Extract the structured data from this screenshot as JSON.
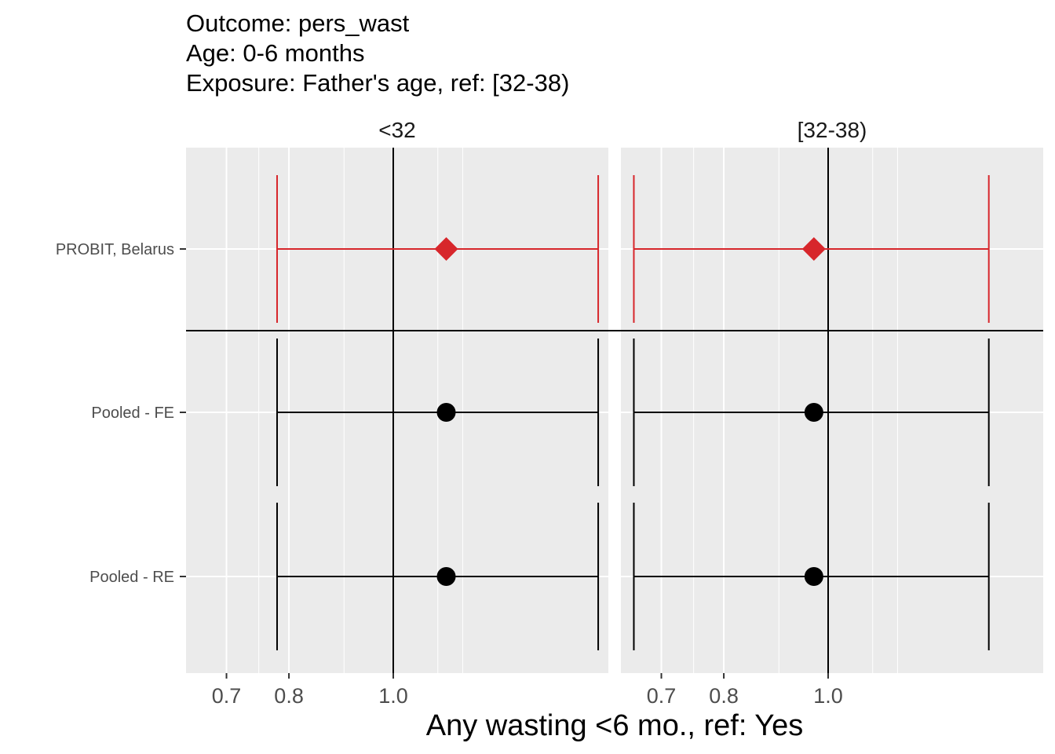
{
  "chart_data": {
    "type": "forest",
    "title": [
      "Outcome: pers_wast",
      "Age: 0-6 months",
      "Exposure: Father's age, ref: [32-38)"
    ],
    "xlabel": "Any wasting  <6 mo., ref: Yes",
    "x_scale": "log",
    "xlim": [
      0.642,
      1.584
    ],
    "x_ticks": [
      {
        "value": 0.7,
        "label": "0.7"
      },
      {
        "value": 0.8,
        "label": "0.8"
      },
      {
        "value": 1.0,
        "label": "1.0"
      }
    ],
    "x_minor_gridlines": [
      0.75,
      0.9,
      1.1,
      1.16
    ],
    "reference_line": 1.0,
    "rows": [
      "PROBIT, Belarus",
      "Pooled - FE",
      "Pooled - RE"
    ],
    "row_separator_after": "PROBIT, Belarus",
    "panels": [
      {
        "label": "<32",
        "estimates": [
          {
            "row": "PROBIT, Belarus",
            "est": 1.12,
            "lower": 0.78,
            "upper": 1.55,
            "shape": "diamond",
            "color": "#d7262b"
          },
          {
            "row": "Pooled - FE",
            "est": 1.12,
            "lower": 0.78,
            "upper": 1.55,
            "shape": "circle",
            "color": "#000000"
          },
          {
            "row": "Pooled - RE",
            "est": 1.12,
            "lower": 0.78,
            "upper": 1.55,
            "shape": "circle",
            "color": "#000000"
          }
        ]
      },
      {
        "label": "[32-38)",
        "estimates": [
          {
            "row": "PROBIT, Belarus",
            "est": 0.97,
            "lower": 0.66,
            "upper": 1.41,
            "shape": "diamond",
            "color": "#d7262b"
          },
          {
            "row": "Pooled - FE",
            "est": 0.97,
            "lower": 0.66,
            "upper": 1.41,
            "shape": "circle",
            "color": "#000000"
          },
          {
            "row": "Pooled - RE",
            "est": 0.97,
            "lower": 0.66,
            "upper": 1.41,
            "shape": "circle",
            "color": "#000000"
          }
        ]
      }
    ],
    "panel_background": "#ebebeb",
    "grid": true
  }
}
